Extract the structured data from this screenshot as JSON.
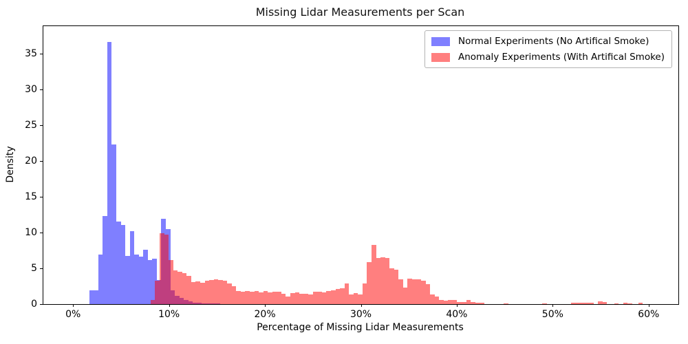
{
  "chart": {
    "title": "Missing Lidar Measurements per Scan",
    "xlabel": "Percentage of Missing Lidar Measurements",
    "ylabel": "Density"
  },
  "chart_data": {
    "type": "bar",
    "subtype": "overlapping-histogram",
    "title": "Missing Lidar Measurements per Scan",
    "xlabel": "Percentage of Missing Lidar Measurements",
    "ylabel": "Density",
    "grid": false,
    "legend_position": "top-right",
    "xlim": [
      -3.1,
      63.1
    ],
    "ylim": [
      0,
      38.8
    ],
    "x_ticks": [
      {
        "value": 0,
        "label": "0%"
      },
      {
        "value": 10,
        "label": "10%"
      },
      {
        "value": 20,
        "label": "20%"
      },
      {
        "value": 30,
        "label": "30%"
      },
      {
        "value": 40,
        "label": "40%"
      },
      {
        "value": 50,
        "label": "50%"
      },
      {
        "value": 60,
        "label": "60%"
      }
    ],
    "y_ticks": [
      {
        "value": 0,
        "label": "0"
      },
      {
        "value": 5,
        "label": "5"
      },
      {
        "value": 10,
        "label": "10"
      },
      {
        "value": 15,
        "label": "15"
      },
      {
        "value": 20,
        "label": "20"
      },
      {
        "value": 25,
        "label": "25"
      },
      {
        "value": 30,
        "label": "30"
      },
      {
        "value": 35,
        "label": "35"
      }
    ],
    "bin_width_percent": 0.47,
    "series": [
      {
        "name": "Normal Experiments (No Artifical Smoke)",
        "color": "#0000ff",
        "fill_alpha": 0.5,
        "bins": [
          [
            1.68,
            1.9
          ],
          [
            2.15,
            1.9
          ],
          [
            2.62,
            6.9
          ],
          [
            3.09,
            12.3
          ],
          [
            3.56,
            36.6
          ],
          [
            4.03,
            22.3
          ],
          [
            4.5,
            11.5
          ],
          [
            4.97,
            11.0
          ],
          [
            5.44,
            6.7
          ],
          [
            5.91,
            10.2
          ],
          [
            6.38,
            6.9
          ],
          [
            6.85,
            6.6
          ],
          [
            7.32,
            7.6
          ],
          [
            7.79,
            6.1
          ],
          [
            8.26,
            6.3
          ],
          [
            8.73,
            3.4
          ],
          [
            9.2,
            11.9
          ],
          [
            9.67,
            10.5
          ],
          [
            10.14,
            1.9
          ],
          [
            10.61,
            1.2
          ],
          [
            11.08,
            0.9
          ],
          [
            11.55,
            0.6
          ],
          [
            12.02,
            0.35
          ],
          [
            12.49,
            0.2
          ],
          [
            12.96,
            0.15
          ],
          [
            13.43,
            0.1
          ],
          [
            13.9,
            0.08
          ],
          [
            14.37,
            0.06
          ],
          [
            14.84,
            0.05
          ]
        ]
      },
      {
        "name": "Anomaly Experiments (With Artifical Smoke)",
        "color": "#ff0000",
        "fill_alpha": 0.5,
        "bins": [
          [
            8.08,
            0.6
          ],
          [
            8.55,
            3.3
          ],
          [
            9.02,
            9.9
          ],
          [
            9.49,
            9.7
          ],
          [
            9.96,
            6.1
          ],
          [
            10.43,
            4.7
          ],
          [
            10.9,
            4.5
          ],
          [
            11.37,
            4.35
          ],
          [
            11.84,
            3.9
          ],
          [
            12.31,
            3.1
          ],
          [
            12.78,
            3.2
          ],
          [
            13.25,
            3.0
          ],
          [
            13.72,
            3.3
          ],
          [
            14.19,
            3.4
          ],
          [
            14.66,
            3.5
          ],
          [
            15.13,
            3.4
          ],
          [
            15.6,
            3.3
          ],
          [
            16.07,
            2.9
          ],
          [
            16.54,
            2.5
          ],
          [
            17.01,
            1.8
          ],
          [
            17.48,
            1.7
          ],
          [
            17.95,
            1.8
          ],
          [
            18.42,
            1.75
          ],
          [
            18.89,
            1.8
          ],
          [
            19.36,
            1.6
          ],
          [
            19.83,
            1.85
          ],
          [
            20.3,
            1.6
          ],
          [
            20.77,
            1.75
          ],
          [
            21.24,
            1.7
          ],
          [
            21.71,
            1.45
          ],
          [
            22.18,
            1.05
          ],
          [
            22.65,
            1.55
          ],
          [
            23.12,
            1.6
          ],
          [
            23.59,
            1.45
          ],
          [
            24.06,
            1.4
          ],
          [
            24.53,
            1.35
          ],
          [
            25.0,
            1.7
          ],
          [
            25.47,
            1.75
          ],
          [
            25.94,
            1.6
          ],
          [
            26.41,
            1.8
          ],
          [
            26.88,
            1.9
          ],
          [
            27.35,
            2.1
          ],
          [
            27.82,
            2.2
          ],
          [
            28.29,
            2.9
          ],
          [
            28.76,
            1.3
          ],
          [
            29.23,
            1.5
          ],
          [
            29.7,
            1.3
          ],
          [
            30.17,
            2.9
          ],
          [
            30.64,
            5.9
          ],
          [
            31.11,
            8.3
          ],
          [
            31.58,
            6.4
          ],
          [
            32.05,
            6.5
          ],
          [
            32.52,
            6.4
          ],
          [
            32.99,
            5.0
          ],
          [
            33.46,
            4.8
          ],
          [
            33.93,
            3.5
          ],
          [
            34.4,
            2.3
          ],
          [
            34.87,
            3.6
          ],
          [
            35.34,
            3.5
          ],
          [
            35.81,
            3.5
          ],
          [
            36.28,
            3.3
          ],
          [
            36.75,
            2.75
          ],
          [
            37.22,
            1.3
          ],
          [
            37.69,
            1.1
          ],
          [
            38.16,
            0.6
          ],
          [
            38.63,
            0.5
          ],
          [
            39.1,
            0.55
          ],
          [
            39.57,
            0.55
          ],
          [
            40.04,
            0.25
          ],
          [
            40.51,
            0.3
          ],
          [
            40.98,
            0.55
          ],
          [
            41.45,
            0.3
          ],
          [
            41.92,
            0.2
          ],
          [
            42.39,
            0.15
          ],
          [
            44.9,
            0.1
          ],
          [
            48.9,
            0.1
          ],
          [
            51.9,
            0.15
          ],
          [
            52.37,
            0.15
          ],
          [
            52.84,
            0.2
          ],
          [
            53.31,
            0.15
          ],
          [
            53.78,
            0.15
          ],
          [
            54.72,
            0.35
          ],
          [
            55.19,
            0.3
          ],
          [
            56.4,
            0.1
          ],
          [
            57.34,
            0.15
          ],
          [
            57.81,
            0.1
          ],
          [
            58.93,
            0.2
          ]
        ]
      }
    ]
  }
}
